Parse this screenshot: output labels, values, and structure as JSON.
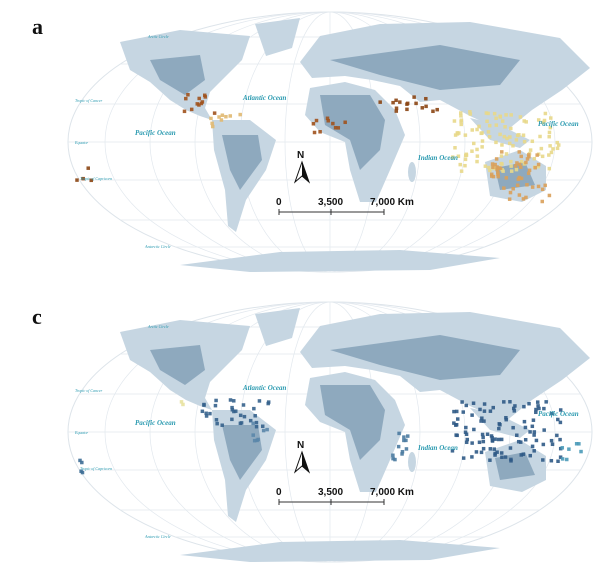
{
  "panels": [
    {
      "label": "a",
      "arctic_circle": "Arctic Circle",
      "tropic_of_cancer": "Tropic of Cancer",
      "equator": "Equator",
      "tropic_of_capricorn": "Tropic of Capricorn",
      "antarctic_circle": "Antarctic Circle",
      "atlantic_ocean": "Atlantic Ocean",
      "pacific_ocean_west": "Pacific Ocean",
      "pacific_ocean_east": "Pacific Ocean",
      "indian_ocean": "Indian Ocean",
      "north": "N",
      "scale": [
        "0",
        "3,500",
        "7,000 Km"
      ]
    },
    {
      "label": "c",
      "arctic_circle": "Arctic Circle",
      "tropic_of_cancer": "Tropic of Cancer",
      "equator": "Equator",
      "tropic_of_capricorn": "Tropic of Capricorn",
      "antarctic_circle": "Antarctic Circle",
      "atlantic_ocean": "Atlantic Ocean",
      "pacific_ocean_west": "Pacific Ocean",
      "pacific_ocean_east": "Pacific Ocean",
      "indian_ocean": "Indian Ocean",
      "north": "N",
      "scale": [
        "0",
        "3,500",
        "7,000 Km"
      ]
    }
  ]
}
